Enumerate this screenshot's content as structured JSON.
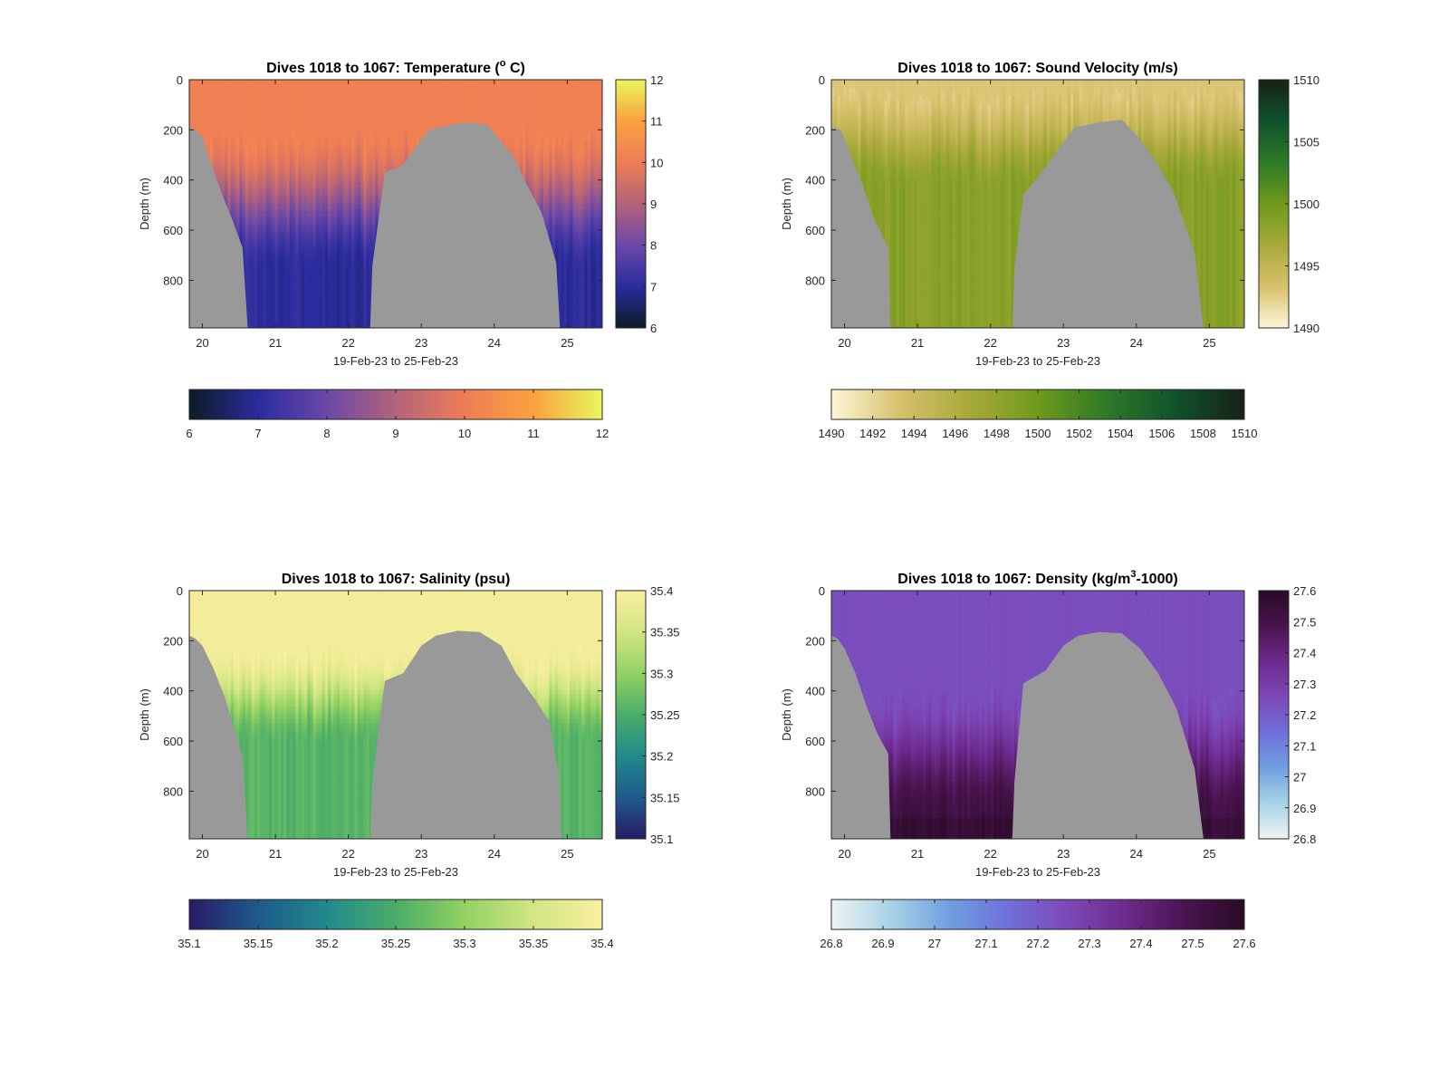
{
  "figure": {
    "background": "#ffffff",
    "mask_color": "#999999"
  },
  "chart_data": [
    {
      "type": "heatmap",
      "title_prefix": "Dives 1018 to 1067: Temperature (",
      "title_sup": "o",
      "title_suffix": " C)",
      "xlabel": "19-Feb-23 to 25-Feb-23",
      "ylabel": "Depth (m)",
      "xticks": [
        "20",
        "21",
        "22",
        "23",
        "24",
        "25"
      ],
      "yticks": [
        "0",
        "200",
        "400",
        "600",
        "800"
      ],
      "xlim": [
        19.82,
        25.48
      ],
      "ylim": [
        0,
        990
      ],
      "clim": [
        6,
        12
      ],
      "cticks_v": [
        "12",
        "11",
        "10",
        "9",
        "8",
        "7",
        "6"
      ],
      "cticks_h": [
        "6",
        "7",
        "8",
        "9",
        "10",
        "11",
        "12"
      ],
      "colormap": [
        "#0c1b26",
        "#2a2c9e",
        "#6b48a8",
        "#b3637a",
        "#ee7d56",
        "#faa23f",
        "#e8f75c"
      ],
      "surface_value": 10.1,
      "deep_value": 7.0,
      "mixed_layer_depth": 220,
      "transition_depth": 750,
      "bottom_strip": false,
      "seafloor_depth_m": [
        {
          "day": 19.82,
          "depth": 190
        },
        {
          "day": 19.9,
          "depth": 200
        },
        {
          "day": 20.0,
          "depth": 230
        },
        {
          "day": 20.1,
          "depth": 320
        },
        {
          "day": 20.2,
          "depth": 400
        },
        {
          "day": 20.3,
          "depth": 480
        },
        {
          "day": 20.4,
          "depth": 550
        },
        {
          "day": 20.55,
          "depth": 670
        },
        {
          "day": 20.62,
          "depth": 990
        },
        {
          "day": 22.3,
          "depth": 990
        },
        {
          "day": 22.33,
          "depth": 740
        },
        {
          "day": 22.5,
          "depth": 370
        },
        {
          "day": 22.75,
          "depth": 340
        },
        {
          "day": 22.95,
          "depth": 260
        },
        {
          "day": 23.1,
          "depth": 200
        },
        {
          "day": 23.4,
          "depth": 180
        },
        {
          "day": 23.7,
          "depth": 170
        },
        {
          "day": 23.9,
          "depth": 180
        },
        {
          "day": 24.05,
          "depth": 230
        },
        {
          "day": 24.25,
          "depth": 300
        },
        {
          "day": 24.45,
          "depth": 420
        },
        {
          "day": 24.65,
          "depth": 530
        },
        {
          "day": 24.85,
          "depth": 730
        },
        {
          "day": 24.9,
          "depth": 990
        },
        {
          "day": 25.48,
          "depth": 990
        }
      ]
    },
    {
      "type": "heatmap",
      "title_prefix": "Dives 1018 to 1067: Sound Velocity (m/s)",
      "title_sup": "",
      "title_suffix": "",
      "xlabel": "19-Feb-23 to 25-Feb-23",
      "ylabel": "Depth (m)",
      "xticks": [
        "20",
        "21",
        "22",
        "23",
        "24",
        "25"
      ],
      "yticks": [
        "0",
        "200",
        "400",
        "600",
        "800"
      ],
      "xlim": [
        19.82,
        25.48
      ],
      "ylim": [
        0,
        990
      ],
      "clim": [
        1490,
        1510
      ],
      "cticks_v": [
        "1510",
        "1505",
        "1500",
        "1495",
        "1490"
      ],
      "cticks_h": [
        "1490",
        "1492",
        "1494",
        "1496",
        "1498",
        "1500",
        "1502",
        "1504",
        "1506",
        "1508",
        "1510"
      ],
      "colormap": [
        "#fdf7d7",
        "#d7c06b",
        "#a8a93a",
        "#6f9a1b",
        "#2d7a26",
        "#10522c",
        "#162116"
      ],
      "surface_value": 1493.0,
      "deep_value": 1498.6,
      "mixed_layer_depth": 60,
      "transition_depth": 420,
      "bottom_strip": false,
      "seafloor_depth_m": [
        {
          "day": 19.82,
          "depth": 190
        },
        {
          "day": 19.95,
          "depth": 200
        },
        {
          "day": 20.1,
          "depth": 310
        },
        {
          "day": 20.25,
          "depth": 420
        },
        {
          "day": 20.4,
          "depth": 550
        },
        {
          "day": 20.6,
          "depth": 670
        },
        {
          "day": 20.63,
          "depth": 990
        },
        {
          "day": 22.3,
          "depth": 990
        },
        {
          "day": 22.33,
          "depth": 750
        },
        {
          "day": 22.45,
          "depth": 460
        },
        {
          "day": 22.75,
          "depth": 350
        },
        {
          "day": 23.0,
          "depth": 250
        },
        {
          "day": 23.15,
          "depth": 190
        },
        {
          "day": 23.5,
          "depth": 170
        },
        {
          "day": 23.8,
          "depth": 160
        },
        {
          "day": 24.0,
          "depth": 220
        },
        {
          "day": 24.25,
          "depth": 320
        },
        {
          "day": 24.5,
          "depth": 440
        },
        {
          "day": 24.8,
          "depth": 690
        },
        {
          "day": 24.92,
          "depth": 990
        },
        {
          "day": 25.48,
          "depth": 990
        }
      ]
    },
    {
      "type": "heatmap",
      "title_prefix": "Dives 1018 to 1067: Salinity (psu)",
      "title_sup": "",
      "title_suffix": "",
      "xlabel": "19-Feb-23 to 25-Feb-23",
      "ylabel": "Depth (m)",
      "xticks": [
        "20",
        "21",
        "22",
        "23",
        "24",
        "25"
      ],
      "yticks": [
        "0",
        "200",
        "400",
        "600",
        "800"
      ],
      "xlim": [
        19.82,
        25.48
      ],
      "ylim": [
        0,
        990
      ],
      "clim": [
        35.1,
        35.4
      ],
      "cticks_v": [
        "35.4",
        "35.35",
        "35.3",
        "35.25",
        "35.2",
        "35.15",
        "35.1"
      ],
      "cticks_h": [
        "35.1",
        "35.15",
        "35.2",
        "35.25",
        "35.3",
        "35.35",
        "35.4"
      ],
      "colormap": [
        "#291a66",
        "#1e5a8c",
        "#208a8a",
        "#4aad68",
        "#93d162",
        "#d2e683",
        "#fbef9f"
      ],
      "surface_value": 35.39,
      "deep_value": 35.26,
      "mixed_layer_depth": 250,
      "transition_depth": 600,
      "bottom_strip": false,
      "seafloor_depth_m": [
        {
          "day": 19.82,
          "depth": 180
        },
        {
          "day": 19.9,
          "depth": 190
        },
        {
          "day": 20.0,
          "depth": 220
        },
        {
          "day": 20.15,
          "depth": 310
        },
        {
          "day": 20.3,
          "depth": 420
        },
        {
          "day": 20.45,
          "depth": 560
        },
        {
          "day": 20.55,
          "depth": 660
        },
        {
          "day": 20.62,
          "depth": 990
        },
        {
          "day": 22.3,
          "depth": 990
        },
        {
          "day": 22.33,
          "depth": 760
        },
        {
          "day": 22.5,
          "depth": 360
        },
        {
          "day": 22.75,
          "depth": 330
        },
        {
          "day": 23.0,
          "depth": 220
        },
        {
          "day": 23.2,
          "depth": 180
        },
        {
          "day": 23.5,
          "depth": 160
        },
        {
          "day": 23.8,
          "depth": 165
        },
        {
          "day": 24.1,
          "depth": 220
        },
        {
          "day": 24.3,
          "depth": 330
        },
        {
          "day": 24.55,
          "depth": 430
        },
        {
          "day": 24.75,
          "depth": 520
        },
        {
          "day": 24.88,
          "depth": 720
        },
        {
          "day": 24.92,
          "depth": 990
        },
        {
          "day": 25.48,
          "depth": 990
        }
      ]
    },
    {
      "type": "heatmap",
      "title_prefix": "Dives 1018 to 1067: Density (kg/m",
      "title_sup": "3",
      "title_suffix": "-1000)",
      "xlabel": "19-Feb-23 to 25-Feb-23",
      "ylabel": "Depth (m)",
      "xticks": [
        "20",
        "21",
        "22",
        "23",
        "24",
        "25"
      ],
      "yticks": [
        "0",
        "200",
        "400",
        "600",
        "800"
      ],
      "xlim": [
        19.82,
        25.48
      ],
      "ylim": [
        0,
        990
      ],
      "clim": [
        26.8,
        27.6
      ],
      "cticks_v": [
        "27.6",
        "27.5",
        "27.4",
        "27.3",
        "27.2",
        "27.1",
        "27",
        "26.9",
        "26.8"
      ],
      "cticks_h": [
        "26.8",
        "26.9",
        "27",
        "27.1",
        "27.2",
        "27.3",
        "27.4",
        "27.5",
        "27.6"
      ],
      "colormap": [
        "#eef4f4",
        "#a8d3e6",
        "#6f9fe0",
        "#6f6fd8",
        "#7d48b8",
        "#6c2a8c",
        "#4a144f",
        "#290a24"
      ],
      "surface_value": 27.24,
      "deep_value": 27.52,
      "mixed_layer_depth": 420,
      "transition_depth": 900,
      "bottom_strip": true,
      "seafloor_depth_m": [
        {
          "day": 19.82,
          "depth": 180
        },
        {
          "day": 19.9,
          "depth": 190
        },
        {
          "day": 20.0,
          "depth": 230
        },
        {
          "day": 20.15,
          "depth": 330
        },
        {
          "day": 20.3,
          "depth": 460
        },
        {
          "day": 20.45,
          "depth": 570
        },
        {
          "day": 20.6,
          "depth": 650
        },
        {
          "day": 20.63,
          "depth": 990
        },
        {
          "day": 22.3,
          "depth": 990
        },
        {
          "day": 22.33,
          "depth": 760
        },
        {
          "day": 22.45,
          "depth": 370
        },
        {
          "day": 22.75,
          "depth": 320
        },
        {
          "day": 23.0,
          "depth": 220
        },
        {
          "day": 23.2,
          "depth": 180
        },
        {
          "day": 23.5,
          "depth": 165
        },
        {
          "day": 23.8,
          "depth": 170
        },
        {
          "day": 24.05,
          "depth": 230
        },
        {
          "day": 24.3,
          "depth": 330
        },
        {
          "day": 24.55,
          "depth": 470
        },
        {
          "day": 24.8,
          "depth": 710
        },
        {
          "day": 24.92,
          "depth": 990
        },
        {
          "day": 25.48,
          "depth": 990
        }
      ]
    }
  ]
}
